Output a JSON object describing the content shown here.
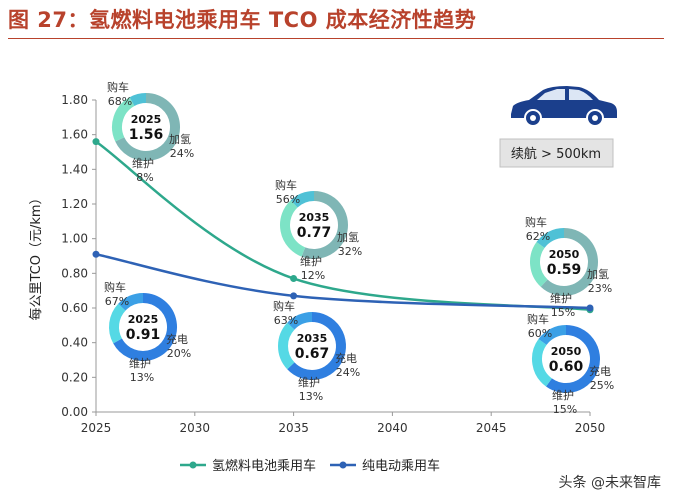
{
  "figure": {
    "title": "图 27：氢燃料电池乘用车 TCO 成本经济性趋势",
    "range_label": "续航 > 500km",
    "watermark": "头条 @未来智库",
    "car_icon": "sedan-car-icon"
  },
  "colors": {
    "title": "#b8422c",
    "hydrogen_line": "#2ea88c",
    "electric_line": "#2e62b5",
    "ring_purchase_h2": "#7fb6b5",
    "ring_fuel_h2": "#7de3c6",
    "ring_maint_h2": "#4fc1d6",
    "ring_purchase_ev": "#2f7fe0",
    "ring_fuel_ev": "#55d9e5",
    "ring_maint_ev": "#3ba0e6",
    "car": "#1b3f8c"
  },
  "chart_data": {
    "type": "line",
    "title": "氢燃料电池乘用车 TCO 成本经济性趋势",
    "xlabel": "",
    "ylabel": "每公里TCO（元/km）",
    "xlim": [
      2025,
      2050
    ],
    "ylim": [
      0,
      1.8
    ],
    "x_ticks": [
      "2025",
      "2030",
      "2035",
      "2040",
      "2045",
      "2050"
    ],
    "y_ticks": [
      "0.00",
      "0.20",
      "0.40",
      "0.60",
      "0.80",
      "1.00",
      "1.20",
      "1.40",
      "1.60",
      "1.80"
    ],
    "legend_position": "bottom",
    "series": [
      {
        "name": "氢燃料电池乘用车",
        "x": [
          2025,
          2035,
          2050
        ],
        "values": [
          1.56,
          0.77,
          0.59
        ],
        "breakdown": [
          {
            "year": "2025",
            "value": "1.56",
            "parts": [
              {
                "label": "购车",
                "pct": "68%"
              },
              {
                "label": "加氢",
                "pct": "24%"
              },
              {
                "label": "维护",
                "pct": "8%"
              }
            ]
          },
          {
            "year": "2035",
            "value": "0.77",
            "parts": [
              {
                "label": "购车",
                "pct": "56%"
              },
              {
                "label": "加氢",
                "pct": "32%"
              },
              {
                "label": "维护",
                "pct": "12%"
              }
            ]
          },
          {
            "year": "2050",
            "value": "0.59",
            "parts": [
              {
                "label": "购车",
                "pct": "62%"
              },
              {
                "label": "加氢",
                "pct": "23%"
              },
              {
                "label": "维护",
                "pct": "15%"
              }
            ]
          }
        ]
      },
      {
        "name": "纯电动乘用车",
        "x": [
          2025,
          2035,
          2050
        ],
        "values": [
          0.91,
          0.67,
          0.6
        ],
        "breakdown": [
          {
            "year": "2025",
            "value": "0.91",
            "parts": [
              {
                "label": "购车",
                "pct": "67%"
              },
              {
                "label": "充电",
                "pct": "20%"
              },
              {
                "label": "维护",
                "pct": "13%"
              }
            ]
          },
          {
            "year": "2035",
            "value": "0.67",
            "parts": [
              {
                "label": "购车",
                "pct": "63%"
              },
              {
                "label": "充电",
                "pct": "24%"
              },
              {
                "label": "维护",
                "pct": "13%"
              }
            ]
          },
          {
            "year": "2050",
            "value": "0.60",
            "parts": [
              {
                "label": "购车",
                "pct": "60%"
              },
              {
                "label": "充电",
                "pct": "25%"
              },
              {
                "label": "维护",
                "pct": "15%"
              }
            ]
          }
        ]
      }
    ]
  }
}
